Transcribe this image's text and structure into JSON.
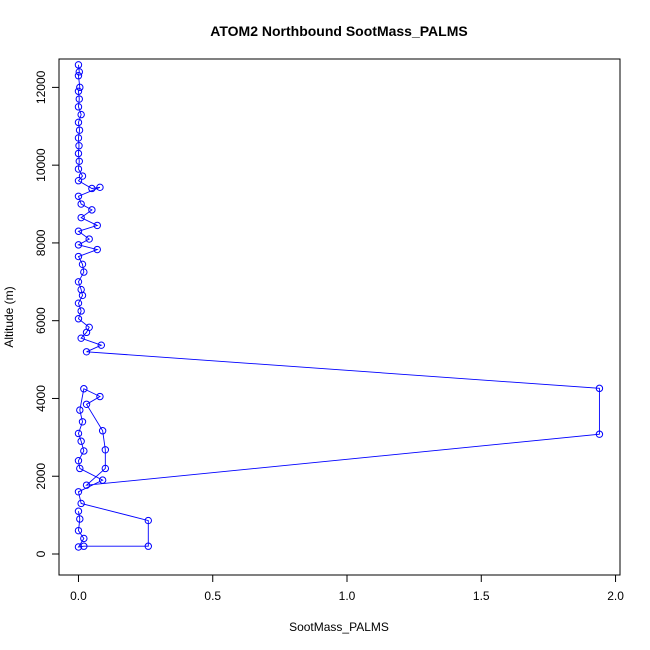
{
  "chart_data": {
    "type": "line",
    "title": "ATOM2 Northbound SootMass_PALMS",
    "xlabel": "SootMass_PALMS",
    "ylabel": "Altitude (m)",
    "xlim": [
      -0.0725,
      2.0166
    ],
    "ylim": [
      -540,
      12730
    ],
    "xticks": [
      0,
      0.5,
      1,
      1.5,
      2
    ],
    "xtick_labels": [
      "0.0",
      "0.5",
      "1.0",
      "1.5",
      "2.0"
    ],
    "yticks": [
      0,
      2000,
      4000,
      6000,
      8000,
      10000,
      12000
    ],
    "ytick_labels": [
      "0",
      "2000",
      "4000",
      "6000",
      "8000",
      "10000",
      "12000"
    ],
    "grid": false,
    "marker": "open-circle",
    "series": [
      {
        "color": "#0000ff",
        "points": [
          {
            "x": 0,
            "y": 12580
          },
          {
            "x": 0.003,
            "y": 12400
          },
          {
            "x": 0,
            "y": 12300
          },
          {
            "x": 0.005,
            "y": 12000
          },
          {
            "x": 0,
            "y": 11900
          },
          {
            "x": 0.003,
            "y": 11700
          },
          {
            "x": 0,
            "y": 11500
          },
          {
            "x": 0.01,
            "y": 11300
          },
          {
            "x": 0,
            "y": 11100
          },
          {
            "x": 0.004,
            "y": 10900
          },
          {
            "x": 0,
            "y": 10700
          },
          {
            "x": 0.002,
            "y": 10500
          },
          {
            "x": 0,
            "y": 10300
          },
          {
            "x": 0.003,
            "y": 10100
          },
          {
            "x": 0,
            "y": 9900
          },
          {
            "x": 0.015,
            "y": 9720
          },
          {
            "x": 0,
            "y": 9600
          },
          {
            "x": 0.05,
            "y": 9400
          },
          {
            "x": 0.08,
            "y": 9430
          },
          {
            "x": 0,
            "y": 9200
          },
          {
            "x": 0.01,
            "y": 9000
          },
          {
            "x": 0.05,
            "y": 8850
          },
          {
            "x": 0.01,
            "y": 8650
          },
          {
            "x": 0.07,
            "y": 8450
          },
          {
            "x": 0,
            "y": 8300
          },
          {
            "x": 0.04,
            "y": 8100
          },
          {
            "x": 0,
            "y": 7950
          },
          {
            "x": 0.07,
            "y": 7830
          },
          {
            "x": 0,
            "y": 7650
          },
          {
            "x": 0.015,
            "y": 7450
          },
          {
            "x": 0.02,
            "y": 7250
          },
          {
            "x": 0,
            "y": 7000
          },
          {
            "x": 0.01,
            "y": 6800
          },
          {
            "x": 0.015,
            "y": 6650
          },
          {
            "x": 0,
            "y": 6450
          },
          {
            "x": 0.01,
            "y": 6250
          },
          {
            "x": 0,
            "y": 6050
          },
          {
            "x": 0.04,
            "y": 5830
          },
          {
            "x": 0.03,
            "y": 5700
          },
          {
            "x": 0.01,
            "y": 5550
          },
          {
            "x": 0.085,
            "y": 5370
          },
          {
            "x": 0.03,
            "y": 5200
          },
          {
            "x": 1.94,
            "y": 4260
          },
          {
            "x": 1.94,
            "y": 3080
          },
          {
            "x": 0.03,
            "y": 1770
          },
          {
            "x": 0.1,
            "y": 2200
          },
          {
            "x": 0.1,
            "y": 2680
          },
          {
            "x": 0.09,
            "y": 3170
          },
          {
            "x": 0.03,
            "y": 3850
          },
          {
            "x": 0.08,
            "y": 4050
          },
          {
            "x": 0.02,
            "y": 4250
          },
          {
            "x": 0.005,
            "y": 3700
          },
          {
            "x": 0.015,
            "y": 3400
          },
          {
            "x": 0,
            "y": 3100
          },
          {
            "x": 0.01,
            "y": 2900
          },
          {
            "x": 0.02,
            "y": 2650
          },
          {
            "x": 0,
            "y": 2400
          },
          {
            "x": 0.005,
            "y": 2200
          },
          {
            "x": 0.09,
            "y": 1900
          },
          {
            "x": 0,
            "y": 1600
          },
          {
            "x": 0.01,
            "y": 1300
          },
          {
            "x": 0.26,
            "y": 860
          },
          {
            "x": 0.26,
            "y": 200
          },
          {
            "x": 0.02,
            "y": 200
          },
          {
            "x": 0,
            "y": 180
          },
          {
            "x": 0.02,
            "y": 400
          },
          {
            "x": 0,
            "y": 600
          },
          {
            "x": 0.005,
            "y": 900
          },
          {
            "x": 0,
            "y": 1100
          }
        ]
      }
    ]
  }
}
